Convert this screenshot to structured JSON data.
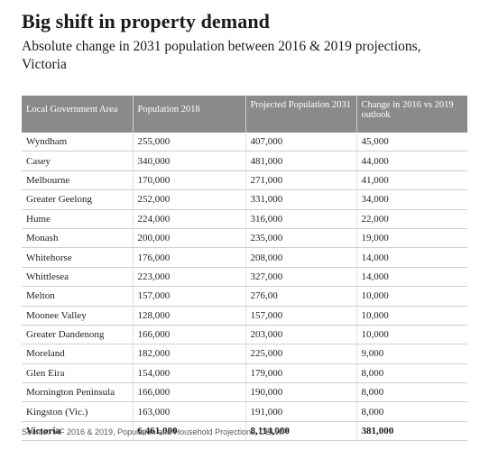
{
  "title": "Big shift in property demand",
  "subtitle": "Absolute change in 2031 population between 2016 & 2019 projections, Victoria",
  "table": {
    "headers": [
      "Local Government Area",
      "Population 2018",
      "Projected Population 2031",
      "Change in 2016 vs 2019 outlook"
    ],
    "rows": [
      [
        "Wyndham",
        "255,000",
        "407,000",
        "45,000"
      ],
      [
        "Casey",
        "340,000",
        "481,000",
        "44,000"
      ],
      [
        "Melbourne",
        "170,000",
        "271,000",
        "41,000"
      ],
      [
        "Greater Geelong",
        "252,000",
        "331,000",
        "34,000"
      ],
      [
        "Hume",
        "224,000",
        "316,000",
        "22,000"
      ],
      [
        "Monash",
        "200,000",
        "235,000",
        "19,000"
      ],
      [
        "Whitehorse",
        "176,000",
        "208,000",
        "14,000"
      ],
      [
        "Whittlesea",
        "223,000",
        "327,000",
        "14,000"
      ],
      [
        "Melton",
        "157,000",
        "276,00",
        "10,000"
      ],
      [
        "Moonee Valley",
        "128,000",
        "157,000",
        "10,000"
      ],
      [
        "Greater Dandenong",
        "166,000",
        "203,000",
        "10,000"
      ],
      [
        "Moreland",
        "182,000",
        "225,000",
        "9,000"
      ],
      [
        "Glen Eira",
        "154,000",
        "179,000",
        "8,000"
      ],
      [
        "Mornington Peninsula",
        "166,000",
        "190,000",
        "8,000"
      ],
      [
        "Kingston  (Vic.)",
        "163,000",
        "191,000",
        "8,000"
      ]
    ],
    "total": [
      "Victoria",
      "6,461,000",
      "8,114,000",
      "381,000"
    ]
  },
  "source": "Source: VIF 2016 & 2019, Population and Household Projections, DELWP",
  "colors": {
    "header_background": "#8a8a8a",
    "header_text": "#ffffff",
    "row_divider": "#cfcfcf"
  }
}
